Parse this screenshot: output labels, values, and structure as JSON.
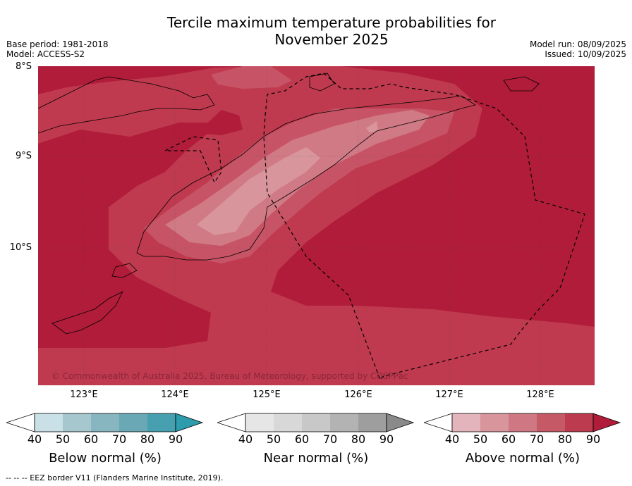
{
  "title_line1": "Tercile maximum temperature probabilities for",
  "title_line2": "November 2025",
  "meta": {
    "base_period": "Base period: 1981-2018",
    "model": "Model: ACCESS-S2",
    "model_run": "Model run: 08/09/2025",
    "issued": "Issued: 10/09/2025"
  },
  "map": {
    "lat_labels": [
      "8°S",
      "9°S",
      "10°S"
    ],
    "lon_labels": [
      "123°E",
      "124°E",
      "125°E",
      "126°E",
      "127°E",
      "128°E"
    ],
    "copyright": "© Commonwealth of Australia 2025, Bureau of Meteorology, supported by COSPPac",
    "colors": {
      "p90": "#b01c3a",
      "p80": "#bf3a4e",
      "p70": "#c75466",
      "p60": "#d07a86",
      "p50": "#d9959c"
    }
  },
  "legends": [
    {
      "title": "Below normal (%)",
      "ticks": [
        "40",
        "50",
        "60",
        "70",
        "80",
        "90"
      ],
      "colors": [
        "#c8e0e6",
        "#a6c7ce",
        "#88b6c0",
        "#6aa8b5",
        "#46a0b0"
      ],
      "tip": "#2f9cae"
    },
    {
      "title": "Near normal (%)",
      "ticks": [
        "40",
        "50",
        "60",
        "70",
        "80",
        "90"
      ],
      "colors": [
        "#e6e6e6",
        "#d8d8d8",
        "#c8c8c8",
        "#b3b3b3",
        "#9e9e9e"
      ],
      "tip": "#8a8a8a"
    },
    {
      "title": "Above normal (%)",
      "ticks": [
        "40",
        "50",
        "60",
        "70",
        "80",
        "90"
      ],
      "colors": [
        "#e3b4bc",
        "#d9959c",
        "#cf7782",
        "#c55a66",
        "#bd3b4f"
      ],
      "tip": "#b01c3a"
    }
  ],
  "footnote": "--  --  -- EEZ border V11 (Flanders Marine Institute, 2019)."
}
